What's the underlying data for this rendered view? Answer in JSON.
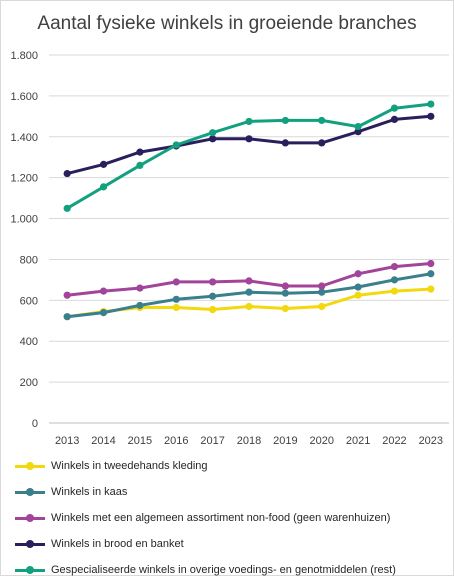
{
  "chart_data": {
    "type": "line",
    "title": "Aantal fysieke winkels in groeiende branches",
    "xlabel": "",
    "ylabel": "",
    "x": [
      "2013",
      "2014",
      "2015",
      "2016",
      "2017",
      "2018",
      "2019",
      "2020",
      "2021",
      "2022",
      "2023"
    ],
    "ylim": [
      0,
      1800
    ],
    "yticks": [
      0,
      200,
      400,
      600,
      800,
      1000,
      1200,
      1400,
      1600,
      1800
    ],
    "ytick_labels": [
      "0",
      "200",
      "400",
      "600",
      "800",
      "1.000",
      "1.200",
      "1.400",
      "1.600",
      "1.800"
    ],
    "grid": true,
    "legend_position": "bottom",
    "series": [
      {
        "name": "Winkels in tweedehands kleding",
        "color": "#f2d80f",
        "values": [
          520,
          545,
          565,
          565,
          555,
          570,
          560,
          570,
          625,
          645,
          655
        ]
      },
      {
        "name": "Winkels in kaas",
        "color": "#3a7f8c",
        "values": [
          520,
          540,
          575,
          605,
          620,
          640,
          635,
          640,
          665,
          700,
          730
        ]
      },
      {
        "name": "Winkels met een algemeen assortiment non-food (geen warenhuizen)",
        "color": "#a1449a",
        "values": [
          625,
          645,
          660,
          690,
          690,
          695,
          670,
          670,
          730,
          765,
          780
        ]
      },
      {
        "name": "Winkels in brood en banket",
        "color": "#2a1f5c",
        "values": [
          1220,
          1265,
          1325,
          1355,
          1390,
          1390,
          1370,
          1370,
          1425,
          1485,
          1500
        ]
      },
      {
        "name": "Gespecialiseerde winkels in overige voedings- en genotmiddelen (rest)",
        "color": "#12a07f",
        "values": [
          1050,
          1155,
          1260,
          1360,
          1420,
          1475,
          1480,
          1480,
          1450,
          1540,
          1560
        ]
      }
    ]
  }
}
